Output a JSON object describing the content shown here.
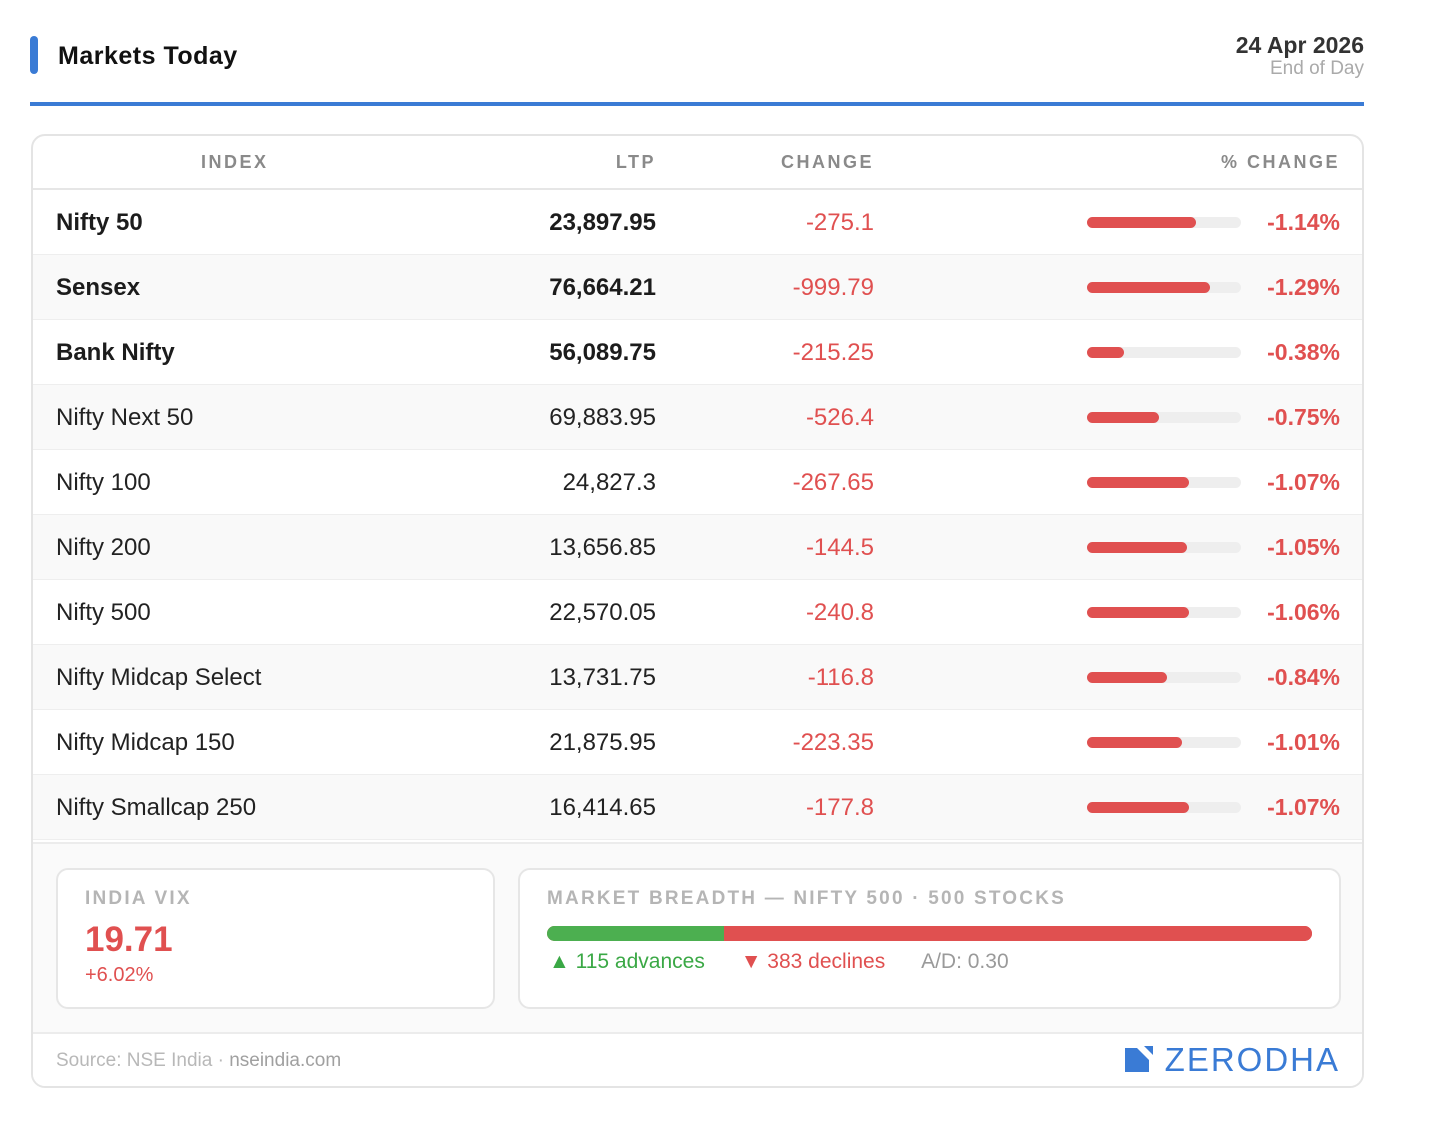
{
  "header": {
    "title": "Markets Today",
    "date": "24 Apr 2026",
    "subtitle": "End of Day"
  },
  "table": {
    "columns": {
      "index": "INDEX",
      "ltp": "LTP",
      "change": "CHANGE",
      "pct_change": "% CHANGE"
    },
    "rows": [
      {
        "name": "Nifty 50",
        "ltp": "23,897.95",
        "change": "-275.1",
        "pct": "-1.14%",
        "bar_fraction": 0.71
      },
      {
        "name": "Sensex",
        "ltp": "76,664.21",
        "change": "-999.79",
        "pct": "-1.29%",
        "bar_fraction": 0.8
      },
      {
        "name": "Bank Nifty",
        "ltp": "56,089.75",
        "change": "-215.25",
        "pct": "-0.38%",
        "bar_fraction": 0.24
      },
      {
        "name": "Nifty Next 50",
        "ltp": "69,883.95",
        "change": "-526.4",
        "pct": "-0.75%",
        "bar_fraction": 0.47
      },
      {
        "name": "Nifty 100",
        "ltp": "24,827.3",
        "change": "-267.65",
        "pct": "-1.07%",
        "bar_fraction": 0.66
      },
      {
        "name": "Nifty 200",
        "ltp": "13,656.85",
        "change": "-144.5",
        "pct": "-1.05%",
        "bar_fraction": 0.65
      },
      {
        "name": "Nifty 500",
        "ltp": "22,570.05",
        "change": "-240.8",
        "pct": "-1.06%",
        "bar_fraction": 0.66
      },
      {
        "name": "Nifty Midcap Select",
        "ltp": "13,731.75",
        "change": "-116.8",
        "pct": "-0.84%",
        "bar_fraction": 0.52
      },
      {
        "name": "Nifty Midcap 150",
        "ltp": "21,875.95",
        "change": "-223.35",
        "pct": "-1.01%",
        "bar_fraction": 0.62
      },
      {
        "name": "Nifty Smallcap 250",
        "ltp": "16,414.65",
        "change": "-177.8",
        "pct": "-1.07%",
        "bar_fraction": 0.66
      }
    ]
  },
  "vix": {
    "label": "INDIA VIX",
    "value": "19.71",
    "change": "+6.02%"
  },
  "breadth": {
    "label": "MARKET BREADTH — NIFTY 500 · 500 STOCKS",
    "advances": 115,
    "declines": 383,
    "advances_text": "▲ 115 advances",
    "declines_text": "▼ 383 declines",
    "ad_ratio_text": "A/D: 0.30"
  },
  "footer": {
    "source_prefix": "Source: NSE India · ",
    "source_link": "nseindia.com",
    "brand": "ZERODHA",
    "brand_icon": "zerodha-logo-icon"
  },
  "colors": {
    "accent": "#3a7bd5",
    "negative": "#e05050",
    "positive": "#4caf50"
  }
}
